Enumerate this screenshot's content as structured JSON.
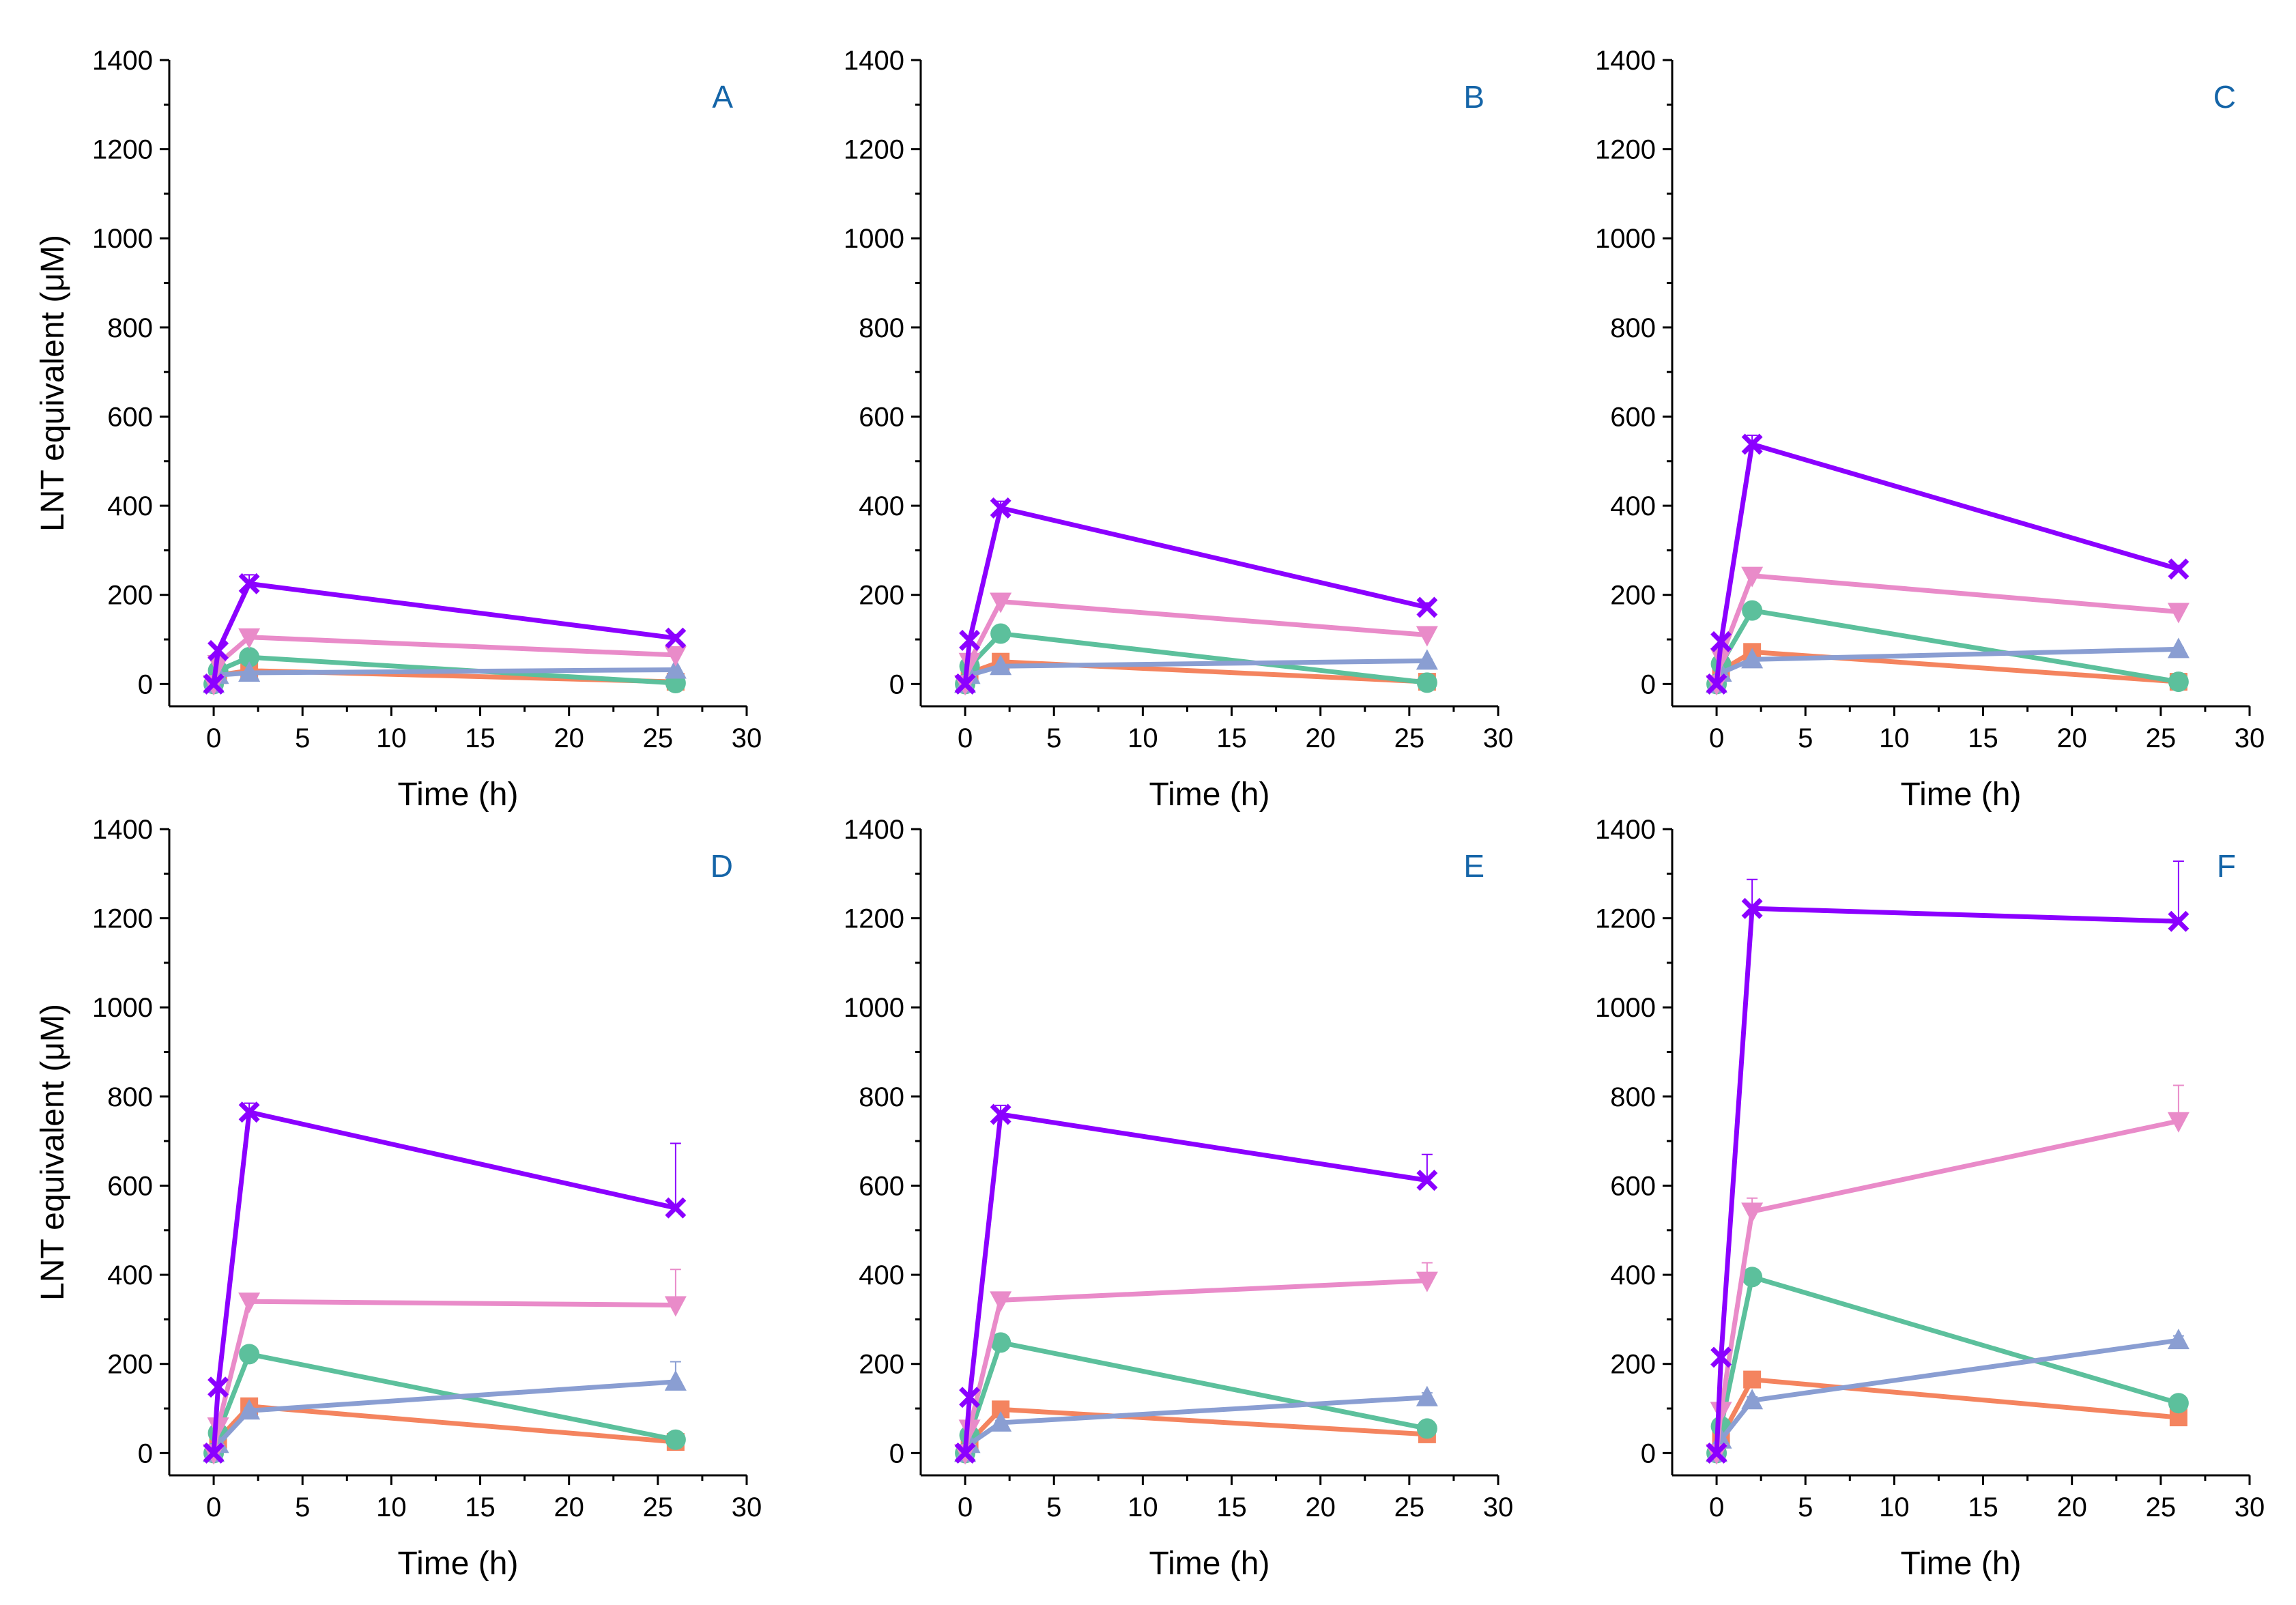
{
  "figure": {
    "series_colors": {
      "s1": "#F4845F",
      "s2": "#5CC09C",
      "s3": "#8A9ED2",
      "s4": "#E98BC9",
      "s5": "#8B00FF"
    },
    "panel_letter_color": "#1565A8"
  },
  "chart_data": [
    {
      "type": "line",
      "panel_label": "A",
      "xlabel": "Time (h)",
      "ylabel": "LNT equivalent (μM)",
      "xlim": [
        -2.5,
        30
      ],
      "ylim": [
        -50,
        1400
      ],
      "xticks": [
        0,
        5,
        10,
        15,
        20,
        25,
        30
      ],
      "yticks": [
        0,
        200,
        400,
        600,
        800,
        1000,
        1200,
        1400
      ],
      "x": [
        0,
        0.25,
        2,
        26
      ],
      "series": [
        {
          "id": "s1",
          "marker": "square",
          "values": [
            0,
            20,
            30,
            5
          ],
          "error": [
            0,
            0,
            3,
            2
          ]
        },
        {
          "id": "s2",
          "marker": "circle",
          "values": [
            0,
            30,
            60,
            2
          ],
          "error": [
            0,
            0,
            5,
            1
          ]
        },
        {
          "id": "s3",
          "marker": "triangle-up",
          "values": [
            0,
            20,
            25,
            32
          ],
          "error": [
            0,
            0,
            3,
            3
          ]
        },
        {
          "id": "s4",
          "marker": "triangle-down",
          "values": [
            0,
            45,
            105,
            65
          ],
          "error": [
            0,
            0,
            8,
            5
          ]
        },
        {
          "id": "s5",
          "marker": "x",
          "values": [
            0,
            75,
            225,
            103
          ],
          "error": [
            0,
            0,
            20,
            8
          ]
        }
      ]
    },
    {
      "type": "line",
      "panel_label": "B",
      "xlabel": "Time (h)",
      "ylabel": "",
      "xlim": [
        -2.5,
        30
      ],
      "ylim": [
        -50,
        1400
      ],
      "xticks": [
        0,
        5,
        10,
        15,
        20,
        25,
        30
      ],
      "yticks": [
        0,
        200,
        400,
        600,
        800,
        1000,
        1200,
        1400
      ],
      "x": [
        0,
        0.25,
        2,
        26
      ],
      "series": [
        {
          "id": "s1",
          "marker": "square",
          "values": [
            0,
            25,
            50,
            5
          ],
          "error": [
            0,
            0,
            4,
            2
          ]
        },
        {
          "id": "s2",
          "marker": "circle",
          "values": [
            0,
            40,
            113,
            3
          ],
          "error": [
            0,
            0,
            6,
            1
          ]
        },
        {
          "id": "s3",
          "marker": "triangle-up",
          "values": [
            0,
            20,
            40,
            52
          ],
          "error": [
            0,
            0,
            3,
            3
          ]
        },
        {
          "id": "s4",
          "marker": "triangle-down",
          "values": [
            0,
            50,
            185,
            110
          ],
          "error": [
            0,
            0,
            10,
            6
          ]
        },
        {
          "id": "s5",
          "marker": "x",
          "values": [
            0,
            98,
            395,
            172
          ],
          "error": [
            0,
            0,
            15,
            10
          ]
        }
      ]
    },
    {
      "type": "line",
      "panel_label": "C",
      "xlabel": "Time (h)",
      "ylabel": "",
      "xlim": [
        -2.5,
        30
      ],
      "ylim": [
        -50,
        1400
      ],
      "xticks": [
        0,
        5,
        10,
        15,
        20,
        25,
        30
      ],
      "yticks": [
        0,
        200,
        400,
        600,
        800,
        1000,
        1200,
        1400
      ],
      "x": [
        0,
        0.25,
        2,
        26
      ],
      "series": [
        {
          "id": "s1",
          "marker": "square",
          "values": [
            0,
            30,
            72,
            5
          ],
          "error": [
            0,
            0,
            5,
            2
          ]
        },
        {
          "id": "s2",
          "marker": "circle",
          "values": [
            0,
            45,
            165,
            5
          ],
          "error": [
            0,
            0,
            8,
            2
          ]
        },
        {
          "id": "s3",
          "marker": "triangle-up",
          "values": [
            0,
            25,
            55,
            78
          ],
          "error": [
            0,
            0,
            3,
            4
          ]
        },
        {
          "id": "s4",
          "marker": "triangle-down",
          "values": [
            0,
            60,
            243,
            162
          ],
          "error": [
            0,
            0,
            10,
            6
          ]
        },
        {
          "id": "s5",
          "marker": "x",
          "values": [
            0,
            95,
            538,
            258
          ],
          "error": [
            0,
            0,
            20,
            8
          ]
        }
      ]
    },
    {
      "type": "line",
      "panel_label": "D",
      "xlabel": "Time (h)",
      "ylabel": "LNT equivalent (μM)",
      "xlim": [
        -2.5,
        30
      ],
      "ylim": [
        -50,
        1400
      ],
      "xticks": [
        0,
        5,
        10,
        15,
        20,
        25,
        30
      ],
      "yticks": [
        0,
        200,
        400,
        600,
        800,
        1000,
        1200,
        1400
      ],
      "x": [
        0,
        0.25,
        2,
        26
      ],
      "series": [
        {
          "id": "s1",
          "marker": "square",
          "values": [
            0,
            30,
            105,
            25
          ],
          "error": [
            0,
            0,
            8,
            3
          ]
        },
        {
          "id": "s2",
          "marker": "circle",
          "values": [
            0,
            45,
            222,
            30
          ],
          "error": [
            0,
            0,
            10,
            3
          ]
        },
        {
          "id": "s3",
          "marker": "triangle-up",
          "values": [
            0,
            20,
            95,
            160
          ],
          "error": [
            0,
            0,
            6,
            45
          ]
        },
        {
          "id": "s4",
          "marker": "triangle-down",
          "values": [
            0,
            60,
            340,
            332
          ],
          "error": [
            0,
            0,
            12,
            80
          ]
        },
        {
          "id": "s5",
          "marker": "x",
          "values": [
            0,
            148,
            765,
            550
          ],
          "error": [
            0,
            0,
            20,
            145
          ]
        }
      ]
    },
    {
      "type": "line",
      "panel_label": "E",
      "xlabel": "Time (h)",
      "ylabel": "",
      "xlim": [
        -2.5,
        30
      ],
      "ylim": [
        -50,
        1400
      ],
      "xticks": [
        0,
        5,
        10,
        15,
        20,
        25,
        30
      ],
      "yticks": [
        0,
        200,
        400,
        600,
        800,
        1000,
        1200,
        1400
      ],
      "x": [
        0,
        0.25,
        2,
        26
      ],
      "series": [
        {
          "id": "s1",
          "marker": "square",
          "values": [
            0,
            25,
            98,
            42
          ],
          "error": [
            0,
            0,
            6,
            4
          ]
        },
        {
          "id": "s2",
          "marker": "circle",
          "values": [
            0,
            40,
            248,
            55
          ],
          "error": [
            0,
            0,
            10,
            5
          ]
        },
        {
          "id": "s3",
          "marker": "triangle-up",
          "values": [
            0,
            20,
            68,
            125
          ],
          "error": [
            0,
            0,
            5,
            10
          ]
        },
        {
          "id": "s4",
          "marker": "triangle-down",
          "values": [
            0,
            55,
            343,
            387
          ],
          "error": [
            0,
            0,
            12,
            40
          ]
        },
        {
          "id": "s5",
          "marker": "x",
          "values": [
            0,
            125,
            760,
            612
          ],
          "error": [
            0,
            0,
            20,
            58
          ]
        }
      ]
    },
    {
      "type": "line",
      "panel_label": "F",
      "xlabel": "Time (h)",
      "ylabel": "",
      "xlim": [
        -2.5,
        30
      ],
      "ylim": [
        -50,
        1400
      ],
      "xticks": [
        0,
        5,
        10,
        15,
        20,
        25,
        30
      ],
      "yticks": [
        0,
        200,
        400,
        600,
        800,
        1000,
        1200,
        1400
      ],
      "x": [
        0,
        0.25,
        2,
        26
      ],
      "series": [
        {
          "id": "s1",
          "marker": "square",
          "values": [
            0,
            35,
            165,
            80
          ],
          "error": [
            0,
            0,
            10,
            6
          ]
        },
        {
          "id": "s2",
          "marker": "circle",
          "values": [
            0,
            60,
            395,
            112
          ],
          "error": [
            0,
            0,
            15,
            8
          ]
        },
        {
          "id": "s3",
          "marker": "triangle-up",
          "values": [
            0,
            30,
            118,
            253
          ],
          "error": [
            0,
            0,
            8,
            10
          ]
        },
        {
          "id": "s4",
          "marker": "triangle-down",
          "values": [
            0,
            95,
            542,
            745
          ],
          "error": [
            0,
            0,
            30,
            80
          ]
        },
        {
          "id": "s5",
          "marker": "x",
          "values": [
            0,
            215,
            1222,
            1193
          ],
          "error": [
            0,
            0,
            65,
            135
          ]
        }
      ]
    }
  ]
}
